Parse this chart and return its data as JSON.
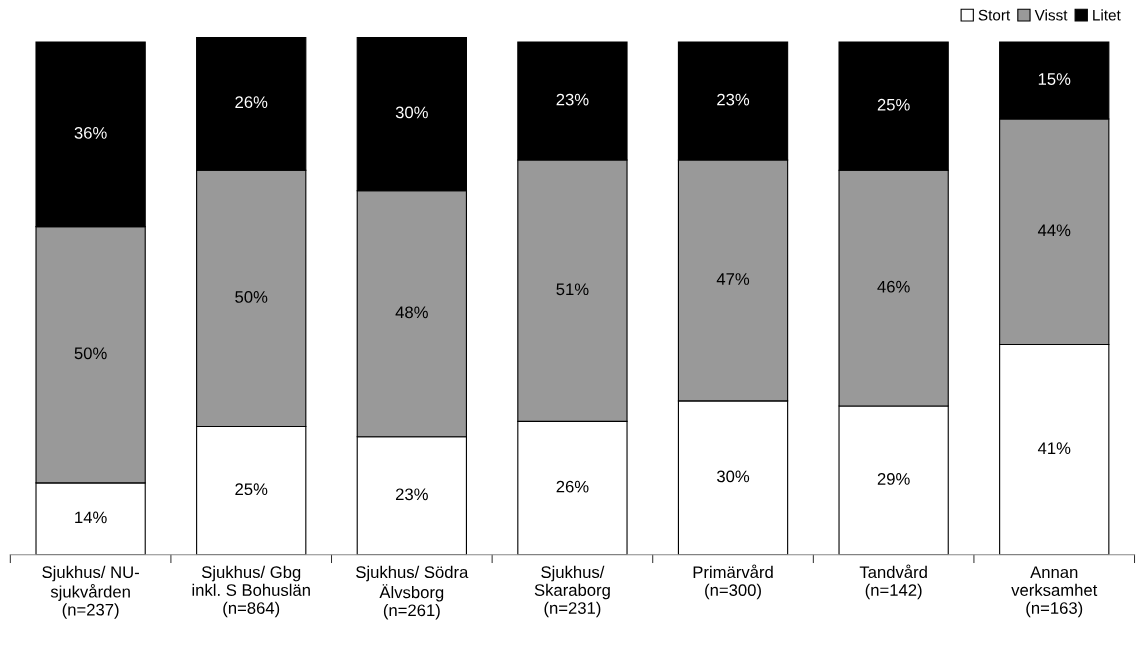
{
  "chart_data": {
    "type": "bar",
    "stacked": true,
    "legend": "top right",
    "grid": false,
    "categories": [
      "Sjukhus/ NU-\nsjukvården\n(n=237)",
      "Sjukhus/ Gbg\ninkl. S Bohuslän\n(n=864)",
      "Sjukhus/ Södra\nÄlvsborg\n(n=261)",
      "Sjukhus/\nSkaraborg\n(n=231)",
      "Primärvård\n(n=300)",
      "Tandvård\n(n=142)",
      "Annan\nverksamhet\n(n=163)"
    ],
    "series": [
      {
        "name": "Stort",
        "color": "#ffffff",
        "values": [
          14,
          25,
          23,
          26,
          30,
          29,
          41
        ],
        "value_labels": [
          "14%",
          "25%",
          "23%",
          "26%",
          "30%",
          "29%",
          "41%"
        ]
      },
      {
        "name": "Visst",
        "color": "#999999",
        "values": [
          50,
          50,
          48,
          51,
          47,
          46,
          44
        ],
        "value_labels": [
          "50%",
          "50%",
          "48%",
          "51%",
          "47%",
          "46%",
          "44%"
        ]
      },
      {
        "name": "Litet",
        "color": "#000000",
        "values": [
          36,
          26,
          30,
          23,
          23,
          25,
          15
        ],
        "value_labels": [
          "36%",
          "26%",
          "30%",
          "23%",
          "23%",
          "25%",
          "15%"
        ]
      }
    ]
  }
}
